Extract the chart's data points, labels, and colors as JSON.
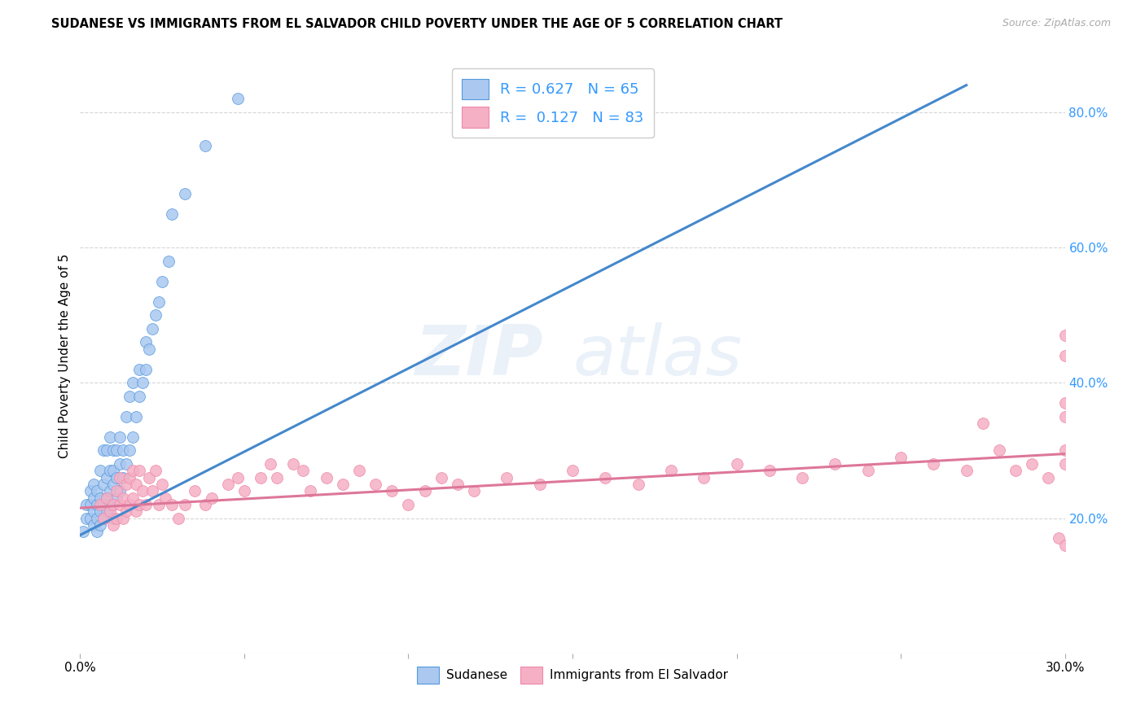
{
  "title": "SUDANESE VS IMMIGRANTS FROM EL SALVADOR CHILD POVERTY UNDER THE AGE OF 5 CORRELATION CHART",
  "source": "Source: ZipAtlas.com",
  "ylabel": "Child Poverty Under the Age of 5",
  "xlim": [
    0.0,
    0.3
  ],
  "ylim": [
    0.0,
    0.88
  ],
  "y_ticks_right": [
    0.2,
    0.4,
    0.6,
    0.8
  ],
  "y_tick_labels_right": [
    "20.0%",
    "40.0%",
    "60.0%",
    "80.0%"
  ],
  "sudanese_R": 0.627,
  "sudanese_N": 65,
  "salvador_R": 0.127,
  "salvador_N": 83,
  "sudanese_color": "#aac8f0",
  "salvador_color": "#f5b0c5",
  "sudanese_edge_color": "#5599dd",
  "salvador_edge_color": "#ee88aa",
  "sudanese_line_color": "#4488cc",
  "salvador_line_color": "#dd7799",
  "legend_text_color": "#3399ff",
  "watermark_zip": "ZIP",
  "watermark_atlas": "atlas",
  "background_color": "#ffffff",
  "grid_color": "#cccccc",
  "sudanese_x": [
    0.001,
    0.002,
    0.002,
    0.003,
    0.003,
    0.003,
    0.004,
    0.004,
    0.004,
    0.004,
    0.005,
    0.005,
    0.005,
    0.005,
    0.006,
    0.006,
    0.006,
    0.006,
    0.007,
    0.007,
    0.007,
    0.007,
    0.008,
    0.008,
    0.008,
    0.008,
    0.009,
    0.009,
    0.009,
    0.009,
    0.01,
    0.01,
    0.01,
    0.01,
    0.01,
    0.011,
    0.011,
    0.011,
    0.012,
    0.012,
    0.012,
    0.013,
    0.013,
    0.014,
    0.014,
    0.015,
    0.015,
    0.016,
    0.016,
    0.017,
    0.018,
    0.018,
    0.019,
    0.02,
    0.02,
    0.021,
    0.022,
    0.023,
    0.024,
    0.025,
    0.027,
    0.028,
    0.032,
    0.038,
    0.048
  ],
  "sudanese_y": [
    0.18,
    0.2,
    0.22,
    0.2,
    0.22,
    0.24,
    0.19,
    0.21,
    0.23,
    0.25,
    0.18,
    0.2,
    0.22,
    0.24,
    0.19,
    0.21,
    0.23,
    0.27,
    0.2,
    0.22,
    0.25,
    0.3,
    0.21,
    0.23,
    0.26,
    0.3,
    0.22,
    0.24,
    0.27,
    0.32,
    0.2,
    0.22,
    0.25,
    0.27,
    0.3,
    0.23,
    0.26,
    0.3,
    0.24,
    0.28,
    0.32,
    0.26,
    0.3,
    0.28,
    0.35,
    0.3,
    0.38,
    0.32,
    0.4,
    0.35,
    0.38,
    0.42,
    0.4,
    0.42,
    0.46,
    0.45,
    0.48,
    0.5,
    0.52,
    0.55,
    0.58,
    0.65,
    0.68,
    0.75,
    0.82
  ],
  "salvador_x": [
    0.006,
    0.007,
    0.008,
    0.009,
    0.01,
    0.01,
    0.011,
    0.011,
    0.012,
    0.012,
    0.013,
    0.013,
    0.014,
    0.014,
    0.015,
    0.015,
    0.016,
    0.016,
    0.017,
    0.017,
    0.018,
    0.018,
    0.019,
    0.02,
    0.021,
    0.022,
    0.023,
    0.024,
    0.025,
    0.026,
    0.028,
    0.03,
    0.032,
    0.035,
    0.038,
    0.04,
    0.045,
    0.048,
    0.05,
    0.055,
    0.058,
    0.06,
    0.065,
    0.068,
    0.07,
    0.075,
    0.08,
    0.085,
    0.09,
    0.095,
    0.1,
    0.105,
    0.11,
    0.115,
    0.12,
    0.13,
    0.14,
    0.15,
    0.16,
    0.17,
    0.18,
    0.19,
    0.2,
    0.21,
    0.22,
    0.23,
    0.24,
    0.25,
    0.26,
    0.27,
    0.275,
    0.28,
    0.285,
    0.29,
    0.295,
    0.298,
    0.3,
    0.3,
    0.3,
    0.3,
    0.3,
    0.3,
    0.3
  ],
  "salvador_y": [
    0.22,
    0.2,
    0.23,
    0.21,
    0.19,
    0.22,
    0.2,
    0.24,
    0.22,
    0.26,
    0.2,
    0.23,
    0.21,
    0.25,
    0.22,
    0.26,
    0.23,
    0.27,
    0.21,
    0.25,
    0.22,
    0.27,
    0.24,
    0.22,
    0.26,
    0.24,
    0.27,
    0.22,
    0.25,
    0.23,
    0.22,
    0.2,
    0.22,
    0.24,
    0.22,
    0.23,
    0.25,
    0.26,
    0.24,
    0.26,
    0.28,
    0.26,
    0.28,
    0.27,
    0.24,
    0.26,
    0.25,
    0.27,
    0.25,
    0.24,
    0.22,
    0.24,
    0.26,
    0.25,
    0.24,
    0.26,
    0.25,
    0.27,
    0.26,
    0.25,
    0.27,
    0.26,
    0.28,
    0.27,
    0.26,
    0.28,
    0.27,
    0.29,
    0.28,
    0.27,
    0.34,
    0.3,
    0.27,
    0.28,
    0.26,
    0.17,
    0.44,
    0.37,
    0.47,
    0.35,
    0.3,
    0.16,
    0.28
  ],
  "sudanese_line_x": [
    0.0,
    0.27
  ],
  "sudanese_line_y": [
    0.175,
    0.84
  ],
  "salvador_line_x": [
    0.0,
    0.3
  ],
  "salvador_line_y": [
    0.215,
    0.295
  ]
}
